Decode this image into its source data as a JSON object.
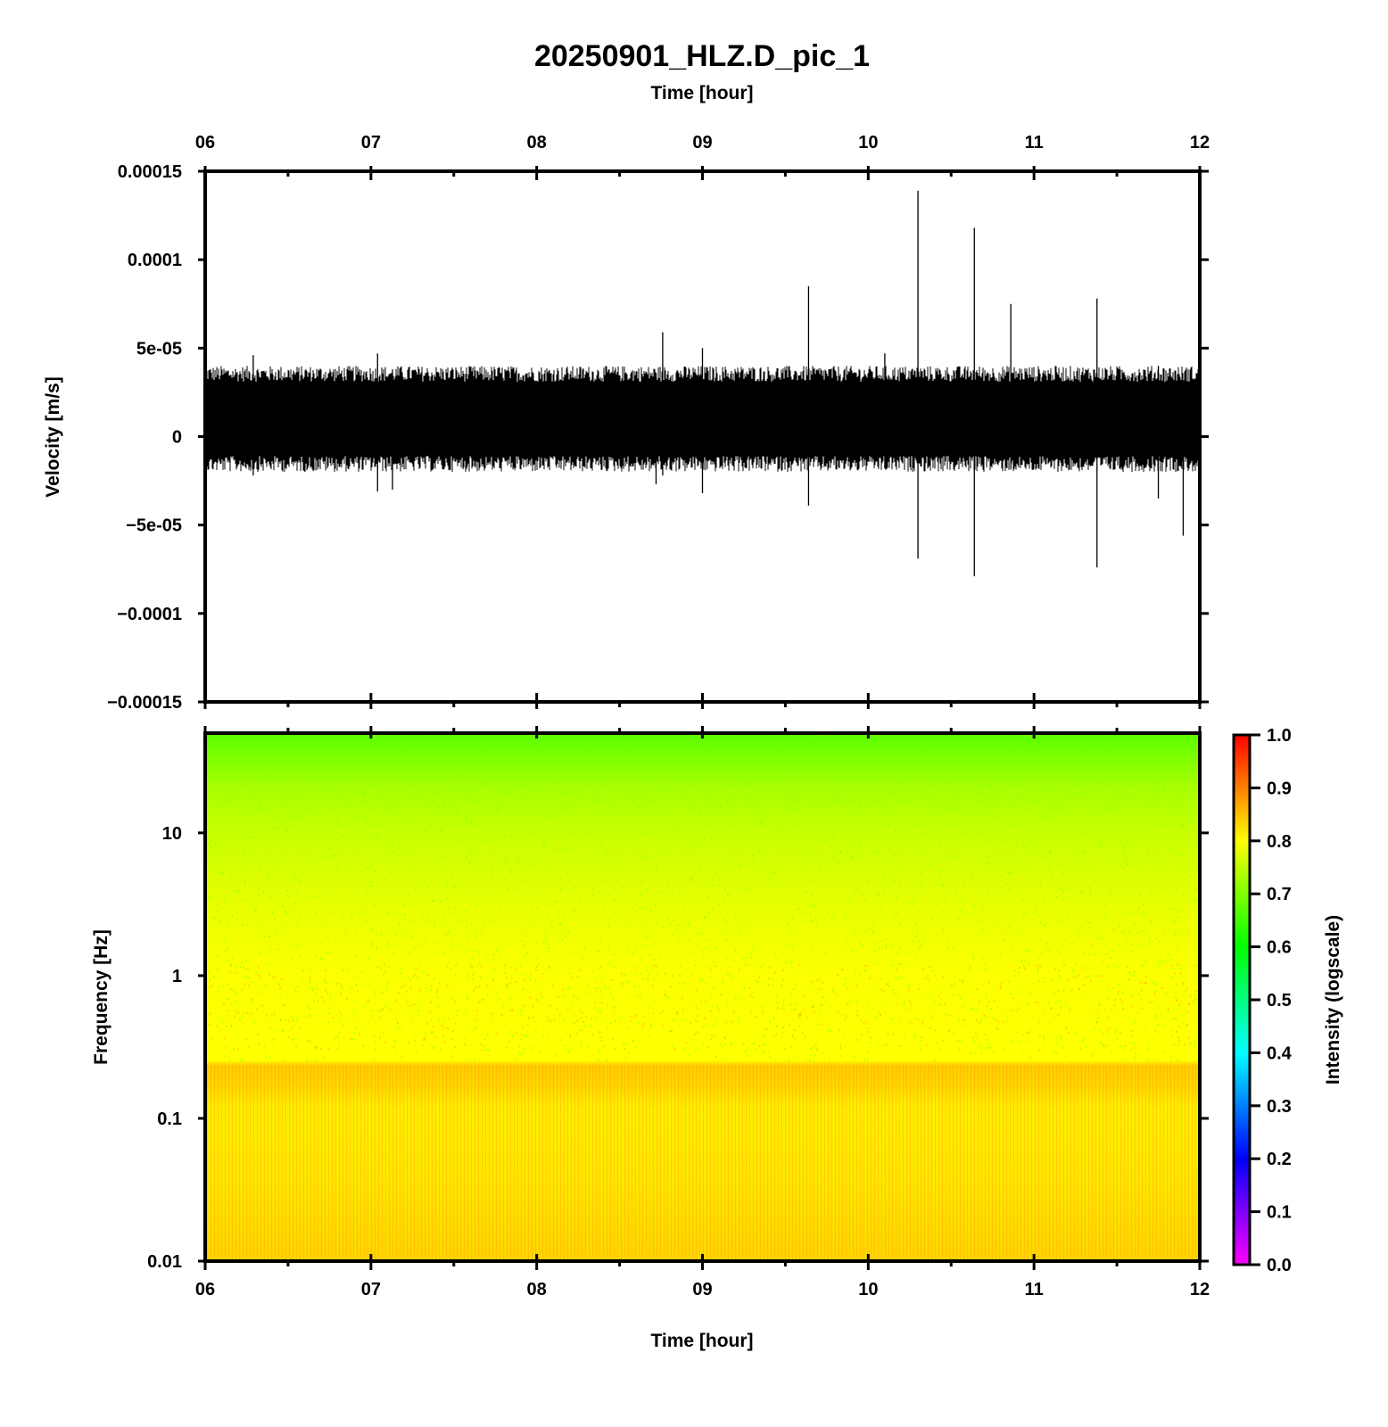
{
  "chart_data": [
    {
      "type": "line",
      "title": "20250901_HLZ.D_pic_1",
      "xlabel": "Time [hour]",
      "ylabel": "Velocity [m/s]",
      "xlim": [
        6,
        12
      ],
      "ylim": [
        -0.00015,
        0.00015
      ],
      "x_ticks": [
        "06",
        "07",
        "08",
        "09",
        "10",
        "11",
        "12"
      ],
      "y_ticks": [
        "0.00015",
        "0.0001",
        "5e-05",
        "0",
        "−5e-05",
        "−0.0001",
        "−0.00015"
      ],
      "y_tick_values": [
        0.00015,
        0.0001,
        5e-05,
        0,
        -5e-05,
        -0.0001,
        -0.00015
      ],
      "trace_color": "#000000",
      "noise_band": {
        "upper": 3.5e-05,
        "lower": -1.5e-05,
        "center": 1e-05
      },
      "spikes": [
        {
          "t": 6.29,
          "max": 4.6e-05,
          "min": -2.2e-05
        },
        {
          "t": 7.04,
          "max": 4.7e-05,
          "min": -3.1e-05
        },
        {
          "t": 7.13,
          "max": 3.8e-05,
          "min": -3e-05
        },
        {
          "t": 8.72,
          "max": 3.6e-05,
          "min": -2.7e-05
        },
        {
          "t": 8.76,
          "max": 5.9e-05,
          "min": -2.2e-05
        },
        {
          "t": 9.0,
          "max": 5e-05,
          "min": -3.2e-05
        },
        {
          "t": 9.64,
          "max": 8.5e-05,
          "min": -3.9e-05
        },
        {
          "t": 10.1,
          "max": 4.7e-05,
          "min": -1.8e-05
        },
        {
          "t": 10.3,
          "max": 0.000139,
          "min": -6.9e-05
        },
        {
          "t": 10.64,
          "max": 0.000118,
          "min": -7.9e-05
        },
        {
          "t": 10.86,
          "max": 7.5e-05,
          "min": -1.8e-05
        },
        {
          "t": 11.38,
          "max": 7.8e-05,
          "min": -7.4e-05
        },
        {
          "t": 11.75,
          "max": 4e-05,
          "min": -3.5e-05
        },
        {
          "t": 11.9,
          "max": 3e-05,
          "min": -5.6e-05
        }
      ]
    },
    {
      "type": "heatmap",
      "xlabel": "Time [hour]",
      "ylabel": "Frequency [Hz]",
      "xlim": [
        6,
        12
      ],
      "ylim": [
        0.01,
        50
      ],
      "y_scale": "log",
      "x_ticks": [
        "06",
        "07",
        "08",
        "09",
        "10",
        "11",
        "12"
      ],
      "y_ticks": [
        "10",
        "1",
        "0.1",
        "0.01"
      ],
      "y_tick_values": [
        10,
        1,
        0.1,
        0.01
      ],
      "intensity_profile": [
        {
          "freq": 50,
          "intensity": 0.66
        },
        {
          "freq": 10,
          "intensity": 0.73
        },
        {
          "freq": 3,
          "intensity": 0.77
        },
        {
          "freq": 1,
          "intensity": 0.8
        },
        {
          "freq": 0.3,
          "intensity": 0.81
        },
        {
          "freq": 0.2,
          "intensity": 0.86
        },
        {
          "freq": 0.1,
          "intensity": 0.82
        },
        {
          "freq": 0.01,
          "intensity": 0.85
        }
      ],
      "colorbar": {
        "label": "Intensity (logscale)",
        "range": [
          0,
          1
        ],
        "ticks": [
          "1.0",
          "0.9",
          "0.8",
          "0.7",
          "0.6",
          "0.5",
          "0.4",
          "0.3",
          "0.2",
          "0.1",
          "0.0"
        ],
        "tick_values": [
          1.0,
          0.9,
          0.8,
          0.7,
          0.6,
          0.5,
          0.4,
          0.3,
          0.2,
          0.1,
          0.0
        ],
        "colors": [
          "#ff00ff",
          "#0000ff",
          "#00ffff",
          "#00ff00",
          "#ffff00",
          "#ff0000"
        ]
      }
    }
  ]
}
